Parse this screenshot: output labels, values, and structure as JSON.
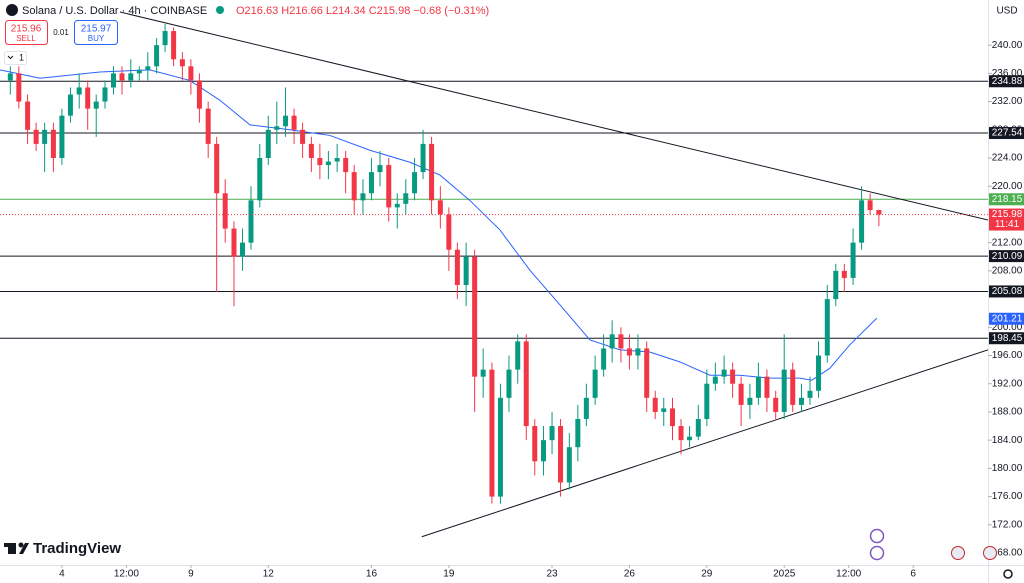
{
  "header": {
    "symbol": "Solana / U.S. Dollar · 4h · COINBASE",
    "quote": "O216.63 H216.66 L214.34 C215.98 −0.68 (−0.31%)"
  },
  "toolbar": {
    "sell_price": "215.96",
    "sell": "SELL",
    "spread": "0.01",
    "buy_price": "215.97",
    "buy": "BUY",
    "indicator": "1"
  },
  "branding": "TradingView",
  "chart_data": {
    "type": "candlestick",
    "currency": "USD",
    "up_color": "#089981",
    "down_color": "#f23645",
    "xlim": [
      -2.4,
      35.9
    ],
    "ylim": [
      166.3,
      246.4
    ],
    "xticks": [
      {
        "value": 0,
        "label": "4"
      },
      {
        "value": 2.5,
        "label": "12:00"
      },
      {
        "value": 5,
        "label": "9"
      },
      {
        "value": 8,
        "label": "12"
      },
      {
        "value": 12,
        "label": "16"
      },
      {
        "value": 15,
        "label": "19"
      },
      {
        "value": 19,
        "label": "23"
      },
      {
        "value": 22,
        "label": "26"
      },
      {
        "value": 25,
        "label": "29"
      },
      {
        "value": 28,
        "label": "2025"
      },
      {
        "value": 30.5,
        "label": "12:00"
      },
      {
        "value": 33,
        "label": "6"
      }
    ],
    "yticks": [
      {
        "value": 240,
        "label": "240.00"
      },
      {
        "value": 236,
        "label": "236.00"
      },
      {
        "value": 232,
        "label": "232.00"
      },
      {
        "value": 228,
        "label": "228.00"
      },
      {
        "value": 224,
        "label": "224.00"
      },
      {
        "value": 220,
        "label": "220.00"
      },
      {
        "value": 212,
        "label": "212.00"
      },
      {
        "value": 208,
        "label": "208.00"
      },
      {
        "value": 200,
        "label": "200.00"
      },
      {
        "value": 196,
        "label": "196.00"
      },
      {
        "value": 192,
        "label": "192.00"
      },
      {
        "value": 188,
        "label": "188.00"
      },
      {
        "value": 184,
        "label": "184.00"
      },
      {
        "value": 180,
        "label": "180.00"
      },
      {
        "value": 176,
        "label": "176.00"
      },
      {
        "value": 172,
        "label": "172.00"
      },
      {
        "value": 168,
        "label": "168.00"
      }
    ],
    "x": [
      -2,
      -1.67,
      -1.33,
      -1,
      -0.67,
      -0.33,
      0,
      0.33,
      0.67,
      1,
      1.33,
      1.67,
      2,
      2.33,
      2.67,
      3,
      3.33,
      3.67,
      4,
      4.33,
      4.67,
      5,
      5.33,
      5.67,
      6,
      6.33,
      6.67,
      7,
      7.33,
      7.67,
      8,
      8.33,
      8.67,
      9,
      9.33,
      9.67,
      10,
      10.33,
      10.67,
      11,
      11.33,
      11.67,
      12,
      12.33,
      12.67,
      13,
      13.33,
      13.67,
      14,
      14.33,
      14.67,
      15,
      15.33,
      15.67,
      16,
      16.33,
      16.67,
      17,
      17.33,
      17.67,
      18,
      18.33,
      18.67,
      19,
      19.33,
      19.67,
      20,
      20.33,
      20.67,
      21,
      21.33,
      21.67,
      22,
      22.33,
      22.67,
      23,
      23.33,
      23.67,
      24,
      24.33,
      24.67,
      25,
      25.33,
      25.67,
      26,
      26.33,
      26.67,
      27,
      27.33,
      27.67,
      28,
      28.33,
      28.67,
      29,
      29.33,
      29.67,
      30,
      30.33,
      30.67,
      31,
      31.33,
      31.67
    ],
    "ohlc": [
      [
        235,
        237,
        233,
        236
      ],
      [
        236,
        237,
        231,
        232
      ],
      [
        232,
        233,
        226,
        228
      ],
      [
        228,
        229,
        225,
        226
      ],
      [
        226,
        229,
        222,
        228
      ],
      [
        228,
        229,
        222,
        224
      ],
      [
        224,
        231,
        223,
        230
      ],
      [
        230,
        234,
        229,
        233
      ],
      [
        233,
        236,
        231,
        234
      ],
      [
        234,
        235,
        228,
        231
      ],
      [
        231,
        233,
        227,
        232
      ],
      [
        232,
        235,
        231,
        234
      ],
      [
        234,
        237,
        233,
        236
      ],
      [
        236,
        237,
        233,
        235
      ],
      [
        235,
        238,
        234,
        236
      ],
      [
        236,
        237,
        235,
        236.5
      ],
      [
        236.5,
        239,
        235,
        237
      ],
      [
        237,
        241,
        236,
        240
      ],
      [
        240,
        243,
        239,
        242
      ],
      [
        242,
        242.5,
        237,
        238
      ],
      [
        238,
        239,
        235,
        237
      ],
      [
        237,
        238,
        233,
        235
      ],
      [
        235,
        236,
        229,
        231
      ],
      [
        231,
        232,
        224,
        226
      ],
      [
        226,
        227,
        205,
        219
      ],
      [
        219,
        221,
        212,
        214
      ],
      [
        214,
        215,
        203,
        210
      ],
      [
        210,
        214,
        208,
        212
      ],
      [
        212,
        220,
        211,
        218
      ],
      [
        218,
        226,
        217,
        224
      ],
      [
        224,
        230,
        223,
        228
      ],
      [
        228,
        232,
        226,
        228.5
      ],
      [
        228.5,
        234,
        227,
        230
      ],
      [
        230,
        231,
        226,
        228
      ],
      [
        228,
        229,
        224,
        226
      ],
      [
        226,
        227,
        222,
        224
      ],
      [
        224,
        226,
        221,
        223
      ],
      [
        223,
        225,
        221,
        223.5
      ],
      [
        223.5,
        226,
        222,
        224
      ],
      [
        224,
        225,
        219,
        222
      ],
      [
        222,
        223,
        216,
        218
      ],
      [
        218,
        221,
        216,
        219
      ],
      [
        219,
        224,
        218,
        222
      ],
      [
        222,
        225,
        220,
        223
      ],
      [
        223,
        224,
        215,
        217
      ],
      [
        217,
        219,
        214,
        217.5
      ],
      [
        217.5,
        221,
        216,
        219
      ],
      [
        219,
        224,
        218,
        222
      ],
      [
        222,
        228,
        221,
        226
      ],
      [
        226,
        227,
        216,
        218
      ],
      [
        218,
        220,
        214,
        216
      ],
      [
        216,
        217,
        208,
        211
      ],
      [
        211,
        212,
        204,
        206
      ],
      [
        206,
        212,
        203,
        210
      ],
      [
        210,
        211,
        188,
        193
      ],
      [
        193,
        197,
        190,
        194
      ],
      [
        194,
        195,
        175,
        176
      ],
      [
        176,
        192,
        175,
        190
      ],
      [
        190,
        196,
        188,
        194
      ],
      [
        194,
        199,
        192,
        198
      ],
      [
        198,
        199,
        184,
        186
      ],
      [
        186,
        187,
        179,
        181
      ],
      [
        181,
        186,
        179,
        184
      ],
      [
        184,
        188,
        182,
        186
      ],
      [
        186,
        187,
        176,
        178
      ],
      [
        178,
        185,
        177,
        183
      ],
      [
        183,
        189,
        181,
        187
      ],
      [
        187,
        192,
        186,
        190
      ],
      [
        190,
        196,
        189,
        194
      ],
      [
        194,
        199,
        193,
        197
      ],
      [
        197,
        201,
        195,
        199
      ],
      [
        199,
        200,
        195,
        197
      ],
      [
        197,
        199,
        194,
        196
      ],
      [
        196,
        199,
        194,
        197
      ],
      [
        197,
        198,
        188,
        190
      ],
      [
        190,
        191,
        187,
        188
      ],
      [
        188,
        190,
        186,
        188.5
      ],
      [
        188.5,
        190,
        184,
        186
      ],
      [
        186,
        187,
        182,
        184
      ],
      [
        184,
        186,
        183,
        184.5
      ],
      [
        184.5,
        189,
        184,
        187
      ],
      [
        187,
        194,
        186,
        192
      ],
      [
        192,
        195,
        191,
        193
      ],
      [
        193,
        196,
        192,
        194
      ],
      [
        194,
        195,
        190,
        192
      ],
      [
        192,
        193,
        186,
        189
      ],
      [
        189,
        192,
        187,
        190
      ],
      [
        190,
        195,
        189,
        193
      ],
      [
        193,
        194,
        188,
        190
      ],
      [
        190,
        191,
        187,
        188
      ],
      [
        188,
        199,
        187,
        194
      ],
      [
        194,
        195,
        188,
        189
      ],
      [
        189,
        192,
        188,
        190
      ],
      [
        190,
        193,
        189,
        191
      ],
      [
        191,
        198,
        190,
        196
      ],
      [
        196,
        206,
        195,
        204
      ],
      [
        204,
        209,
        203,
        208
      ],
      [
        208,
        209,
        205,
        207
      ],
      [
        207,
        214,
        206,
        212
      ],
      [
        212,
        220,
        211,
        218
      ],
      [
        218,
        219,
        216,
        216.63
      ],
      [
        216.63,
        216.66,
        214.34,
        215.98
      ]
    ],
    "moving_average": {
      "color": "#2962ff",
      "value": 201.21,
      "x": [
        -2.4,
        -0.85,
        1.47,
        3.41,
        4.96,
        6.12,
        7.29,
        8.84,
        10.39,
        11.94,
        13.49,
        14.65,
        15.81,
        16.98,
        18.14,
        19.3,
        20.47,
        21.63,
        22.79,
        23.95,
        25.12,
        26.28,
        27.44,
        28.6,
        29.07,
        29.77,
        30.54,
        31.59
      ],
      "values": [
        236.5,
        235.3,
        236.2,
        236.5,
        235,
        232.2,
        228.7,
        228,
        227.2,
        225.1,
        223.4,
        221.6,
        218,
        213.8,
        208.1,
        203.2,
        198.2,
        196.8,
        196.5,
        195.1,
        193.2,
        193.2,
        192.8,
        192.8,
        192.5,
        194.2,
        197.5,
        201.3
      ]
    },
    "levels": [
      {
        "value": 234.88,
        "color": "#131722"
      },
      {
        "value": 227.54,
        "color": "#131722"
      },
      {
        "value": 218.15,
        "color": "#4caf50"
      },
      {
        "value": 210.09,
        "color": "#131722"
      },
      {
        "value": 205.08,
        "color": "#131722"
      },
      {
        "value": 198.45,
        "color": "#131722"
      }
    ],
    "current": {
      "value": 215.98,
      "countdown": "11:41",
      "color": "#f23645"
    },
    "trendlines": [
      {
        "x": [
          2.25,
          35.9
        ],
        "y": [
          244.7,
          215.2
        ]
      },
      {
        "x": [
          13.95,
          35.9
        ],
        "y": [
          170.3,
          196.8
        ]
      }
    ]
  }
}
